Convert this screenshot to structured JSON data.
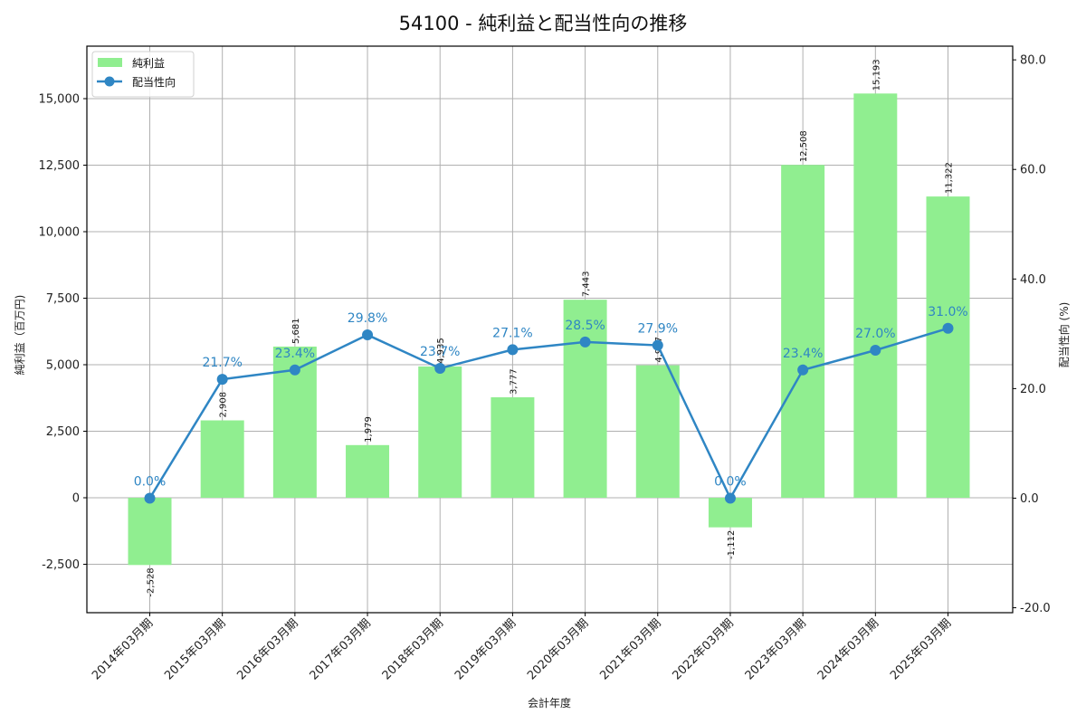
{
  "title": "54100 - 純利益と配当性向の推移",
  "chart_data": {
    "type": "bar+line",
    "title": "54100 - 純利益と配当性向の推移",
    "xlabel": "会計年度",
    "ylabel_left": "純利益（百万円)",
    "ylabel_right": "配当性向 (%)",
    "categories": [
      "2014年03月期",
      "2015年03月期",
      "2016年03月期",
      "2017年03月期",
      "2018年03月期",
      "2019年03月期",
      "2020年03月期",
      "2021年03月期",
      "2022年03月期",
      "2023年03月期",
      "2024年03月期",
      "2025年03月期"
    ],
    "series": [
      {
        "name": "純利益",
        "type": "bar",
        "axis": "left",
        "color": "#90ee90",
        "values": [
          -2528,
          2908,
          5681,
          1979,
          4935,
          3777,
          7443,
          4977,
          -1112,
          12508,
          15193,
          11322
        ],
        "labels": [
          "-2,528",
          "2,908",
          "5,681",
          "1,979",
          "4,935",
          "3,777",
          "7,443",
          "4,977",
          "-1,112",
          "12,508",
          "15,193",
          "11,322"
        ]
      },
      {
        "name": "配当性向",
        "type": "line",
        "axis": "right",
        "color": "#2f86c4",
        "values": [
          0.0,
          21.7,
          23.4,
          29.8,
          23.7,
          27.1,
          28.5,
          27.9,
          0.0,
          23.4,
          27.0,
          31.0
        ],
        "labels": [
          "0.0%",
          "21.7%",
          "23.4%",
          "29.8%",
          "23.7%",
          "27.1%",
          "28.5%",
          "27.9%",
          "0.0%",
          "23.4%",
          "27.0%",
          "31.0%"
        ]
      }
    ],
    "ylim_left": [
      -4320,
      16973
    ],
    "ylim_right": [
      -20.9,
      82.5
    ],
    "yticks_left": [
      -2500,
      0,
      2500,
      5000,
      7500,
      10000,
      12500,
      15000
    ],
    "yticks_left_labels": [
      "-2,500",
      "0",
      "2,500",
      "5,000",
      "7,500",
      "10,000",
      "12,500",
      "15,000"
    ],
    "yticks_right": [
      -20,
      0,
      20,
      40,
      60,
      80
    ],
    "yticks_right_labels": [
      "-20.0",
      "0.0",
      "20.0",
      "40.0",
      "60.0",
      "80.0"
    ],
    "grid": true,
    "legend_position": "upper left"
  },
  "legend": {
    "items": [
      {
        "label": "純利益",
        "color": "#90ee90"
      },
      {
        "label": "配当性向",
        "color": "#2f86c4"
      }
    ]
  }
}
